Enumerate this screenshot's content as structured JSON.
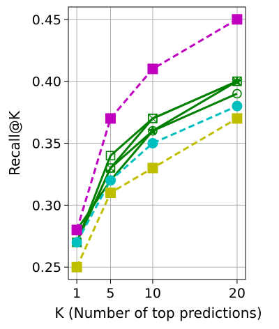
{
  "chart_data": {
    "type": "line",
    "xlabel": "K (Number of top predictions)",
    "ylabel": "Recall@K",
    "x": [
      1,
      5,
      10,
      20
    ],
    "xticks": [
      "1",
      "5",
      "10",
      "20"
    ],
    "xlim": [
      0,
      21
    ],
    "ylim": [
      0.24,
      0.46
    ],
    "yticks": [
      "0.25",
      "0.30",
      "0.35",
      "0.40",
      "0.45"
    ],
    "grid": true,
    "series": [
      {
        "values": [
          0.27,
          0.33,
          0.36,
          0.39
        ],
        "color": "#008000",
        "line": "solid",
        "marker": "circle-open"
      },
      {
        "values": [
          0.27,
          0.34,
          0.37,
          0.4
        ],
        "color": "#008000",
        "line": "solid",
        "marker": "square-open"
      },
      {
        "values": [
          0.27,
          0.33,
          0.37,
          0.4
        ],
        "color": "#008000",
        "line": "solid",
        "marker": "square-x-open"
      },
      {
        "values": [
          0.28,
          0.32,
          0.36,
          0.4
        ],
        "color": "#008000",
        "line": "solid",
        "marker": "star"
      },
      {
        "values": [
          0.28,
          0.37,
          0.41,
          0.45
        ],
        "color": "#BF00BF",
        "line": "dashed",
        "marker": "square"
      },
      {
        "values": [
          0.27,
          0.32,
          0.35,
          0.38
        ],
        "color": "#00BFBF",
        "line": "dashed",
        "marker": "circle"
      },
      {
        "values": [
          0.25,
          0.31,
          0.33,
          0.37
        ],
        "color": "#BFBF00",
        "line": "dashed",
        "marker": "square"
      }
    ]
  }
}
